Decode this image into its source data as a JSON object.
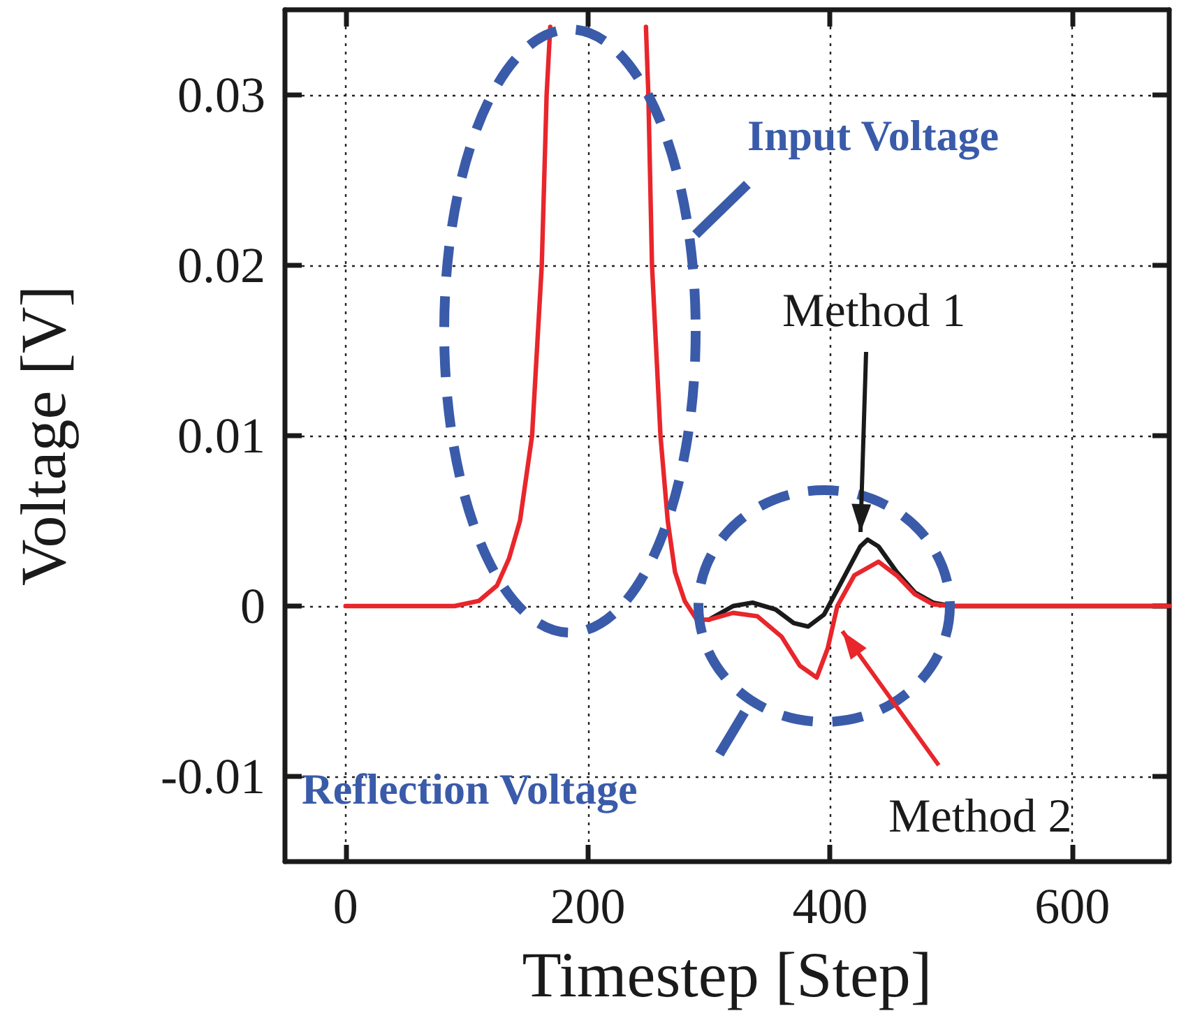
{
  "chart_data": {
    "type": "line",
    "xlabel": "Timestep [Step]",
    "ylabel": "Voltage [V]",
    "xlim": [
      -50,
      680
    ],
    "xticks": [
      0,
      200,
      400,
      600
    ],
    "ylim": [
      -0.015,
      0.035
    ],
    "yticks": [
      -0.01,
      0,
      0.01,
      0.02,
      0.03
    ],
    "grid": true,
    "legend": false,
    "marker": "none",
    "line_style": "solid",
    "annotations": [
      "Input Voltage",
      "Reflection Voltage"
    ],
    "series": [
      {
        "name": "Method 1",
        "color": "#1a1a1a",
        "x": [
          300,
          320,
          336,
          355,
          370,
          382,
          395,
          410,
          425,
          431,
          440,
          455,
          470,
          485,
          500,
          600,
          680
        ],
        "values": [
          -0.0008,
          0,
          0.0002,
          -0.0002,
          -0.001,
          -0.0012,
          -0.0005,
          0.0015,
          0.0035,
          0.0039,
          0.0035,
          0.002,
          0.0008,
          0.0002,
          0,
          0,
          0
        ]
      },
      {
        "name": "Method 2",
        "color": "#e8262b",
        "x": [
          0,
          50,
          90,
          110,
          125,
          135,
          144,
          154,
          162,
          166,
          169,
          210,
          248,
          250,
          253,
          260,
          266,
          272,
          280,
          290,
          300,
          320,
          340,
          360,
          375,
          389,
          398,
          406,
          420,
          440,
          455,
          470,
          485,
          500,
          600,
          680
        ],
        "values": [
          0,
          0,
          0,
          0.0003,
          0.0012,
          0.0028,
          0.005,
          0.01,
          0.02,
          0.03,
          0.034,
          null,
          0.034,
          0.03,
          0.02,
          0.01,
          0.005,
          0.002,
          0.0003,
          -0.0008,
          -0.0008,
          -0.0004,
          -0.0006,
          -0.0018,
          -0.0035,
          -0.0042,
          -0.0025,
          0,
          0.0018,
          0.0026,
          0.0018,
          0.0007,
          0.0001,
          0,
          0,
          0
        ]
      }
    ]
  }
}
